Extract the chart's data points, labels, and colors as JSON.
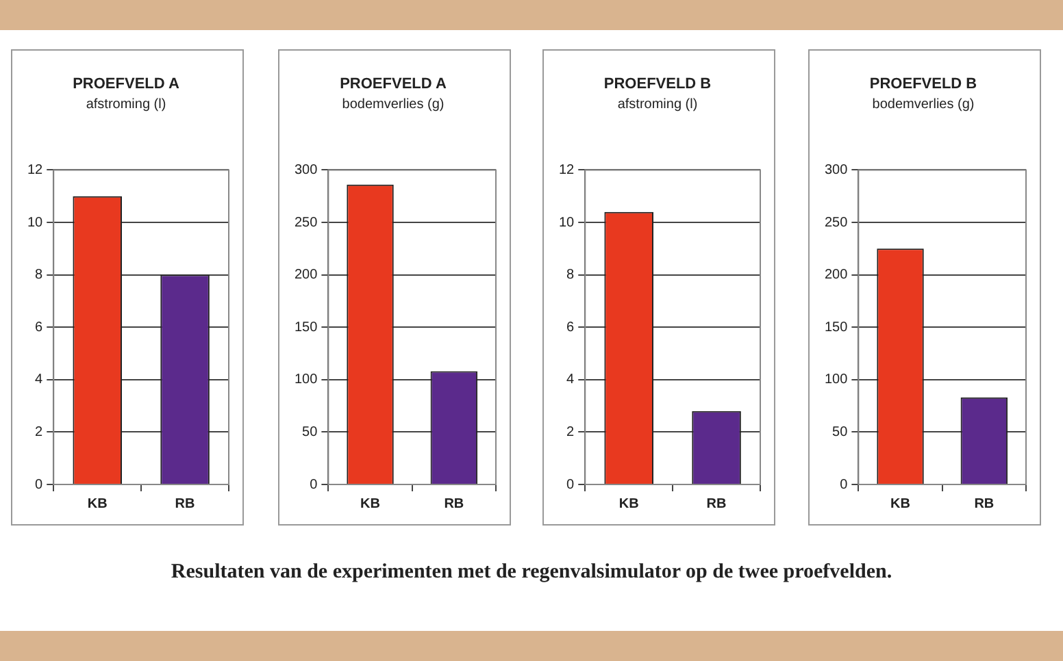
{
  "chart_data": [
    {
      "type": "bar",
      "title": "PROEFVELD A",
      "subtitle": "afstroming (l)",
      "categories": [
        "KB",
        "RB"
      ],
      "values": [
        11,
        8
      ],
      "colors": [
        "#e8391f",
        "#5b2a8c"
      ],
      "ylim": [
        0,
        12
      ],
      "yticks": [
        0,
        2,
        4,
        6,
        8,
        10,
        12
      ],
      "grid": "y",
      "annotations": [
        "Resultaten van de experimenten met de regenvalsimulator op de twee proefvelden."
      ]
    },
    {
      "type": "bar",
      "title": "PROEFVELD A",
      "subtitle": "bodemverlies (g)",
      "categories": [
        "KB",
        "RB"
      ],
      "values": [
        286,
        108
      ],
      "colors": [
        "#e8391f",
        "#5b2a8c"
      ],
      "ylim": [
        0,
        300
      ],
      "yticks": [
        0,
        50,
        100,
        150,
        200,
        250,
        300
      ],
      "grid": "y"
    },
    {
      "type": "bar",
      "title": "PROEFVELD B",
      "subtitle": "afstroming (l)",
      "categories": [
        "KB",
        "RB"
      ],
      "values": [
        10.4,
        2.8
      ],
      "colors": [
        "#e8391f",
        "#5b2a8c"
      ],
      "ylim": [
        0,
        12
      ],
      "yticks": [
        0,
        2,
        4,
        6,
        8,
        10,
        12
      ],
      "grid": "y"
    },
    {
      "type": "bar",
      "title": "PROEFVELD B",
      "subtitle": "bodemverlies (g)",
      "categories": [
        "KB",
        "RB"
      ],
      "values": [
        225,
        83
      ],
      "colors": [
        "#e8391f",
        "#5b2a8c"
      ],
      "ylim": [
        0,
        300
      ],
      "yticks": [
        0,
        50,
        100,
        150,
        200,
        250,
        300
      ],
      "grid": "y"
    }
  ]
}
